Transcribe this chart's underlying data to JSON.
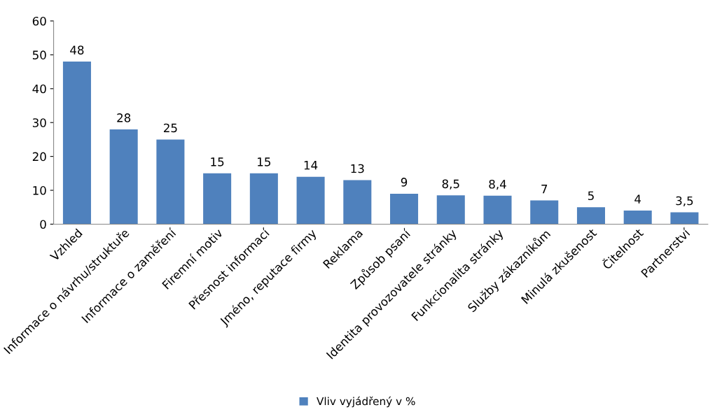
{
  "chart_data": {
    "type": "bar",
    "categories": [
      "Vzhled",
      "Informace o návrhu/struktuře",
      "Informace o zaměření",
      "Firemní motiv",
      "Přesnost informací",
      "Jméno, reputace firmy",
      "Reklama",
      "Způsob psaní",
      "Identita provozovatele stránky",
      "Funkcionalita stránky",
      "Služby zákazníkům",
      "Minulá zkušenost",
      "Čitelnost",
      "Partnerství"
    ],
    "series": [
      {
        "name": "Vliv vyjádřený v %",
        "color": "#4f81bd",
        "values": [
          48,
          28,
          25,
          15,
          15,
          14,
          13,
          9,
          8.5,
          8.4,
          7,
          5,
          4,
          3.5
        ],
        "value_labels": [
          "48",
          "28",
          "25",
          "15",
          "15",
          "14",
          "13",
          "9",
          "8,5",
          "8,4",
          "7",
          "5",
          "4",
          "3,5"
        ]
      }
    ],
    "ylim": [
      0,
      60
    ],
    "yticks": [
      0,
      10,
      20,
      30,
      40,
      50,
      60
    ],
    "grid": false,
    "legend": "bottom"
  }
}
